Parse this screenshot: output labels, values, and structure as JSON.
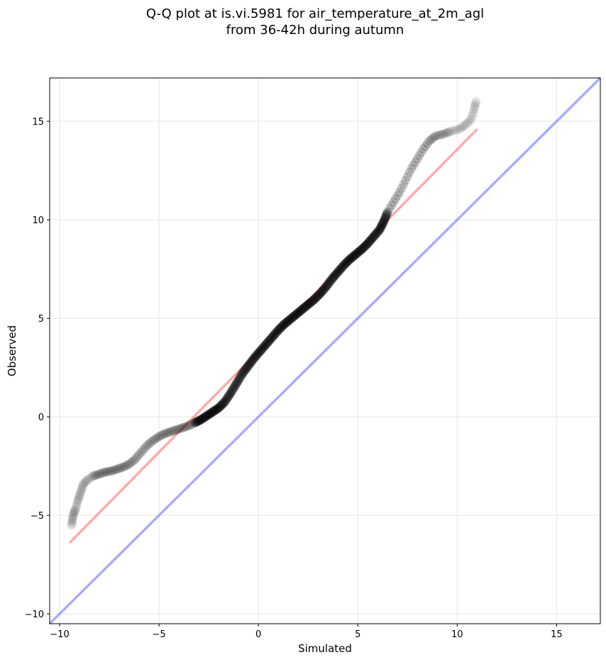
{
  "chart_data": {
    "type": "scatter",
    "title_line1": "Q-Q plot at is.vi.5981 for air_temperature_at_2m_agl",
    "title_line2": "from 36-42h during autumn",
    "xlabel": "Simulated",
    "ylabel": "Observed",
    "xlim": [
      -10.5,
      17.2
    ],
    "ylim": [
      -10.5,
      17.2
    ],
    "xticks": [
      -10,
      -5,
      0,
      5,
      10,
      15
    ],
    "yticks": [
      -10,
      -5,
      0,
      5,
      10,
      15
    ],
    "grid": true,
    "points": [
      [
        -9.4,
        -5.5
      ],
      [
        -9.35,
        -5.2
      ],
      [
        -9.3,
        -4.9
      ],
      [
        -9.2,
        -4.7
      ],
      [
        -9.1,
        -4.3
      ],
      [
        -9.0,
        -4.0
      ],
      [
        -8.9,
        -3.7
      ],
      [
        -8.8,
        -3.4
      ],
      [
        -8.6,
        -3.2
      ],
      [
        -8.3,
        -3.0
      ],
      [
        -8.0,
        -2.9
      ],
      [
        -7.7,
        -2.8
      ],
      [
        -7.4,
        -2.75
      ],
      [
        -7.1,
        -2.65
      ],
      [
        -6.8,
        -2.55
      ],
      [
        -6.5,
        -2.4
      ],
      [
        -6.2,
        -2.15
      ],
      [
        -5.9,
        -1.8
      ],
      [
        -5.6,
        -1.45
      ],
      [
        -5.3,
        -1.2
      ],
      [
        -5.0,
        -1.0
      ],
      [
        -4.7,
        -0.85
      ],
      [
        -4.4,
        -0.75
      ],
      [
        -4.1,
        -0.65
      ],
      [
        -3.8,
        -0.55
      ],
      [
        -3.5,
        -0.45
      ],
      [
        -3.2,
        -0.3
      ],
      [
        -2.9,
        -0.15
      ],
      [
        -2.6,
        0.05
      ],
      [
        -2.3,
        0.25
      ],
      [
        -2.0,
        0.45
      ],
      [
        -1.7,
        0.75
      ],
      [
        -1.4,
        1.2
      ],
      [
        -1.1,
        1.7
      ],
      [
        -0.8,
        2.2
      ],
      [
        -0.5,
        2.6
      ],
      [
        -0.2,
        3.0
      ],
      [
        0.1,
        3.35
      ],
      [
        0.4,
        3.7
      ],
      [
        0.7,
        4.05
      ],
      [
        1.0,
        4.4
      ],
      [
        1.3,
        4.7
      ],
      [
        1.6,
        4.95
      ],
      [
        1.9,
        5.2
      ],
      [
        2.2,
        5.45
      ],
      [
        2.5,
        5.7
      ],
      [
        2.8,
        5.95
      ],
      [
        3.1,
        6.25
      ],
      [
        3.4,
        6.6
      ],
      [
        3.7,
        7.0
      ],
      [
        4.0,
        7.35
      ],
      [
        4.3,
        7.7
      ],
      [
        4.6,
        8.0
      ],
      [
        4.9,
        8.25
      ],
      [
        5.2,
        8.5
      ],
      [
        5.5,
        8.8
      ],
      [
        5.8,
        9.15
      ],
      [
        6.1,
        9.5
      ],
      [
        6.3,
        9.9
      ],
      [
        6.5,
        10.4
      ],
      [
        6.8,
        10.9
      ],
      [
        7.1,
        11.4
      ],
      [
        7.4,
        12.0
      ],
      [
        7.7,
        12.6
      ],
      [
        8.0,
        13.1
      ],
      [
        8.3,
        13.6
      ],
      [
        8.6,
        14.0
      ],
      [
        8.9,
        14.25
      ],
      [
        9.3,
        14.35
      ],
      [
        9.7,
        14.5
      ],
      [
        10.1,
        14.6
      ],
      [
        10.4,
        14.8
      ],
      [
        10.7,
        15.1
      ],
      [
        10.85,
        15.6
      ],
      [
        10.95,
        16.0
      ]
    ],
    "fit_line": [
      [
        -9.5,
        -6.4
      ],
      [
        11.0,
        14.6
      ]
    ],
    "identity_line": [
      [
        -10.5,
        -10.5
      ],
      [
        17.2,
        17.2
      ]
    ],
    "colors": {
      "points": "#000000",
      "fit_line": "#ff6666",
      "identity_line": "#6666ff",
      "grid": "#e6e6e6"
    }
  }
}
